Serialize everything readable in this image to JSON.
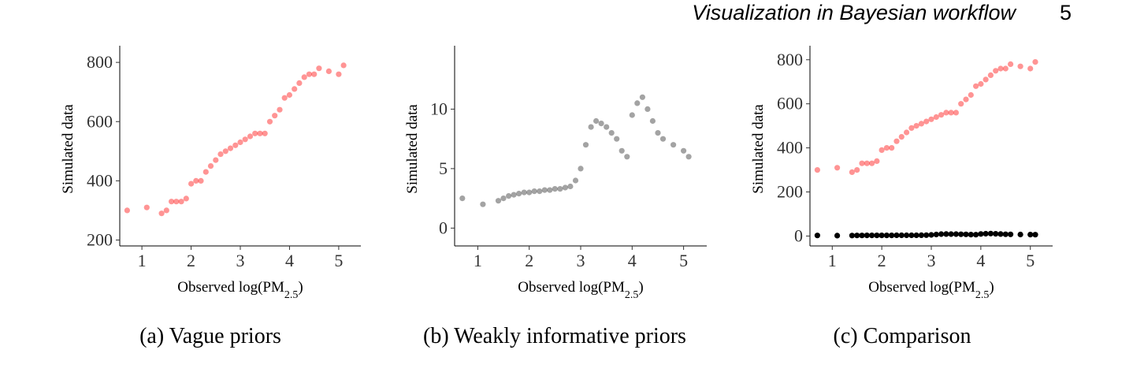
{
  "header": {
    "running_title": "Visualization in Bayesian workflow",
    "page_number": "5"
  },
  "chart_data": [
    {
      "type": "scatter",
      "caption": "(a) Vague priors",
      "xlabel": "Observed log(PM2.5)",
      "ylabel": "Simulated data",
      "xlim": [
        0.55,
        5.45
      ],
      "ylim": [
        180,
        835
      ],
      "xticks": [
        1,
        2,
        3,
        4,
        5
      ],
      "yticks": [
        200,
        400,
        600,
        800
      ],
      "point_color": "#ff0000",
      "point_alpha": 0.14,
      "series": [
        {
          "x": [
            0.7,
            1.1,
            1.4,
            1.5,
            1.6,
            1.7,
            1.8,
            1.9,
            2.0,
            2.1,
            2.2,
            2.3,
            2.4,
            2.5,
            2.6,
            2.7,
            2.8,
            2.9,
            3.0,
            3.1,
            3.2,
            3.3,
            3.4,
            3.5,
            3.6,
            3.7,
            3.8,
            3.9,
            4.0,
            4.1,
            4.2,
            4.3,
            4.4,
            4.5,
            4.6,
            4.8,
            5.0,
            5.1
          ],
          "y": [
            300,
            310,
            290,
            300,
            330,
            330,
            330,
            340,
            390,
            400,
            400,
            430,
            450,
            470,
            490,
            500,
            510,
            520,
            530,
            540,
            550,
            560,
            560,
            560,
            600,
            620,
            640,
            680,
            690,
            710,
            730,
            750,
            760,
            760,
            780,
            770,
            760,
            790
          ]
        }
      ]
    },
    {
      "type": "scatter",
      "caption": "(b) Weakly informative priors",
      "xlabel": "Observed log(PM2.5)",
      "ylabel": "Simulated data",
      "xlim": [
        0.55,
        5.45
      ],
      "ylim": [
        -1.5,
        14.8
      ],
      "xticks": [
        1,
        2,
        3,
        4,
        5
      ],
      "yticks": [
        0,
        5,
        10
      ],
      "point_color": "#000000",
      "point_alpha": 0.12,
      "series": [
        {
          "x": [
            0.7,
            1.1,
            1.4,
            1.5,
            1.6,
            1.7,
            1.8,
            1.9,
            2.0,
            2.1,
            2.2,
            2.3,
            2.4,
            2.5,
            2.6,
            2.7,
            2.8,
            2.9,
            3.0,
            3.1,
            3.2,
            3.3,
            3.4,
            3.5,
            3.6,
            3.7,
            3.8,
            3.9,
            4.0,
            4.1,
            4.2,
            4.3,
            4.4,
            4.5,
            4.6,
            4.8,
            5.0,
            5.1
          ],
          "y": [
            2.5,
            2.0,
            2.3,
            2.5,
            2.7,
            2.8,
            2.9,
            3.0,
            3.0,
            3.1,
            3.1,
            3.2,
            3.2,
            3.3,
            3.3,
            3.4,
            3.5,
            4.0,
            5.0,
            7.0,
            8.5,
            9.0,
            8.8,
            8.5,
            8.0,
            7.5,
            6.5,
            6.0,
            9.5,
            10.5,
            11.0,
            10.0,
            9.0,
            8.0,
            7.5,
            7.0,
            6.5,
            6.0
          ]
        }
      ]
    },
    {
      "type": "scatter",
      "caption": "(c) Comparison",
      "xlabel": "Observed log(PM2.5)",
      "ylabel": "Simulated data",
      "xlim": [
        0.55,
        5.45
      ],
      "ylim": [
        -45,
        835
      ],
      "xticks": [
        1,
        2,
        3,
        4,
        5
      ],
      "yticks": [
        0,
        200,
        400,
        600,
        800
      ],
      "series": [
        {
          "color": "#ff0000",
          "alpha": 0.14,
          "x": [
            0.7,
            1.1,
            1.4,
            1.5,
            1.6,
            1.7,
            1.8,
            1.9,
            2.0,
            2.1,
            2.2,
            2.3,
            2.4,
            2.5,
            2.6,
            2.7,
            2.8,
            2.9,
            3.0,
            3.1,
            3.2,
            3.3,
            3.4,
            3.5,
            3.6,
            3.7,
            3.8,
            3.9,
            4.0,
            4.1,
            4.2,
            4.3,
            4.4,
            4.5,
            4.6,
            4.8,
            5.0,
            5.1
          ],
          "y": [
            300,
            310,
            290,
            300,
            330,
            330,
            330,
            340,
            390,
            400,
            400,
            430,
            450,
            470,
            490,
            500,
            510,
            520,
            530,
            540,
            550,
            560,
            560,
            560,
            600,
            620,
            640,
            680,
            690,
            710,
            730,
            750,
            760,
            760,
            780,
            770,
            760,
            790
          ]
        },
        {
          "color": "#000000",
          "alpha": 0.35,
          "x": [
            0.7,
            1.1,
            1.4,
            1.5,
            1.6,
            1.7,
            1.8,
            1.9,
            2.0,
            2.1,
            2.2,
            2.3,
            2.4,
            2.5,
            2.6,
            2.7,
            2.8,
            2.9,
            3.0,
            3.1,
            3.2,
            3.3,
            3.4,
            3.5,
            3.6,
            3.7,
            3.8,
            3.9,
            4.0,
            4.1,
            4.2,
            4.3,
            4.4,
            4.5,
            4.6,
            4.8,
            5.0,
            5.1
          ],
          "y": [
            2.5,
            2.0,
            2.3,
            2.5,
            2.7,
            2.8,
            2.9,
            3.0,
            3.0,
            3.1,
            3.1,
            3.2,
            3.2,
            3.3,
            3.3,
            3.4,
            3.5,
            4.0,
            5.0,
            7.0,
            8.5,
            9.0,
            8.8,
            8.5,
            8.0,
            7.5,
            6.5,
            6.0,
            9.5,
            10.5,
            11.0,
            10.0,
            9.0,
            8.0,
            7.5,
            7.0,
            6.5,
            6.0
          ]
        }
      ]
    }
  ]
}
